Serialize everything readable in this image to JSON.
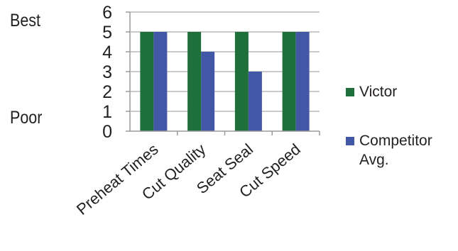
{
  "side_labels": {
    "top": "Best",
    "bottom": "Poor"
  },
  "colors": {
    "victor": "#1f6f3a",
    "competitor": "#4258a6",
    "grid": "#b9b9b9",
    "axis": "#9a9a9a"
  },
  "chart_data": {
    "type": "bar",
    "categories": [
      "Preheat Times",
      "Cut Quality",
      "Seat Seal",
      "Cut Speed"
    ],
    "series": [
      {
        "name": "Victor",
        "values": [
          5,
          5,
          5,
          5
        ]
      },
      {
        "name": "Competitor Avg.",
        "values": [
          5,
          4,
          3,
          5
        ]
      }
    ],
    "ylim": [
      0,
      6
    ],
    "yticks": [
      "0",
      "1",
      "2",
      "3",
      "4",
      "5",
      "6"
    ],
    "grid": true,
    "legend": "right"
  }
}
